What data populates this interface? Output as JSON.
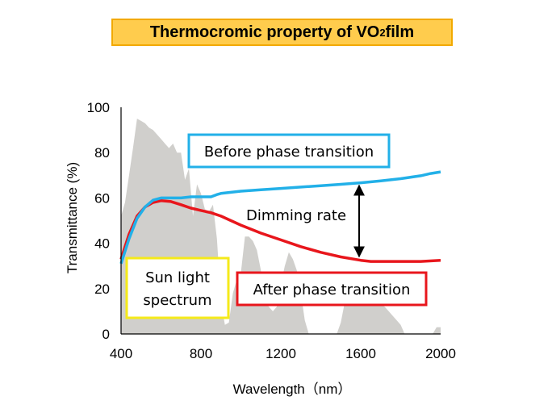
{
  "title": {
    "main": "Thermocromic property of VO",
    "sub": "2",
    "tail": " film"
  },
  "chart_data": {
    "type": "line",
    "xlabel": "Wavelength（nm）",
    "ylabel": "Transmittance (%)",
    "xlim": [
      400,
      2000
    ],
    "ylim": [
      0,
      100
    ],
    "xticks": [
      "400",
      "800",
      "1200",
      "1600",
      "2000"
    ],
    "yticks": [
      "0",
      "20",
      "40",
      "60",
      "80",
      "100"
    ],
    "grid": false,
    "colors": {
      "before": "#22b0e8",
      "after": "#e8161c",
      "spectrum": "#d0cfcc",
      "sunbox": "#f5ea1a"
    },
    "series": [
      {
        "name": "Before phase transition",
        "x": [
          400,
          440,
          480,
          520,
          560,
          600,
          650,
          700,
          750,
          800,
          850,
          880,
          900,
          1000,
          1100,
          1200,
          1300,
          1400,
          1500,
          1600,
          1700,
          1800,
          1900,
          1950,
          2000
        ],
        "y": [
          31,
          42,
          51,
          56,
          59,
          60,
          60,
          60,
          60.5,
          60.5,
          60.5,
          61.5,
          62,
          63,
          63.6,
          64.2,
          64.8,
          65.4,
          66,
          66.7,
          67.5,
          68.5,
          69.8,
          70.8,
          71.5
        ]
      },
      {
        "name": "After phase transition",
        "x": [
          400,
          440,
          480,
          520,
          560,
          600,
          650,
          700,
          750,
          800,
          850,
          900,
          1000,
          1100,
          1200,
          1300,
          1400,
          1500,
          1600,
          1650,
          1700,
          1800,
          1900,
          2000
        ],
        "y": [
          33,
          44,
          52,
          56,
          58,
          58.8,
          58.4,
          57,
          55.5,
          54.5,
          53.5,
          52,
          48,
          44.5,
          41.5,
          38.5,
          36,
          34,
          32.5,
          32,
          32,
          32,
          32,
          32.5
        ]
      },
      {
        "name": "Sun light spectrum",
        "x": [
          400,
          420,
          440,
          460,
          480,
          500,
          520,
          540,
          560,
          580,
          600,
          620,
          640,
          660,
          680,
          700,
          720,
          740,
          760,
          780,
          800,
          820,
          840,
          860,
          880,
          900,
          920,
          940,
          960,
          980,
          1000,
          1020,
          1040,
          1060,
          1080,
          1100,
          1120,
          1140,
          1160,
          1180,
          1200,
          1220,
          1240,
          1260,
          1280,
          1300,
          1320,
          1340,
          1360,
          1380,
          1400,
          1420,
          1440,
          1460,
          1480,
          1500,
          1520,
          1540,
          1560,
          1580,
          1600,
          1620,
          1640,
          1660,
          1680,
          1700,
          1720,
          1740,
          1760,
          1780,
          1800,
          1820,
          1840,
          1860,
          1880,
          1900,
          1920,
          1940,
          1960,
          1980,
          2000
        ],
        "y": [
          52,
          58,
          70,
          82,
          95,
          94,
          93,
          91,
          90,
          88,
          86,
          84,
          82,
          84,
          80,
          80,
          68,
          73,
          52,
          66,
          62,
          55,
          54,
          57,
          42,
          14,
          4,
          5,
          18,
          24,
          27,
          43,
          43,
          41,
          37,
          28,
          14,
          12,
          10,
          12,
          22,
          30,
          36,
          33,
          28,
          18,
          6,
          0,
          0,
          0,
          0,
          0,
          0,
          0,
          0,
          5,
          14,
          17,
          18,
          17,
          16,
          16,
          15,
          15,
          14,
          13,
          12,
          10,
          8,
          6,
          4,
          0,
          0,
          0,
          0,
          0,
          0,
          0,
          0,
          3,
          3
        ]
      }
    ],
    "annotations": {
      "before_label": "Before phase transition",
      "after_label": "After phase transition",
      "sun_label_1": "Sun light",
      "sun_label_2": "spectrum",
      "dimming": "Dimming rate"
    }
  }
}
